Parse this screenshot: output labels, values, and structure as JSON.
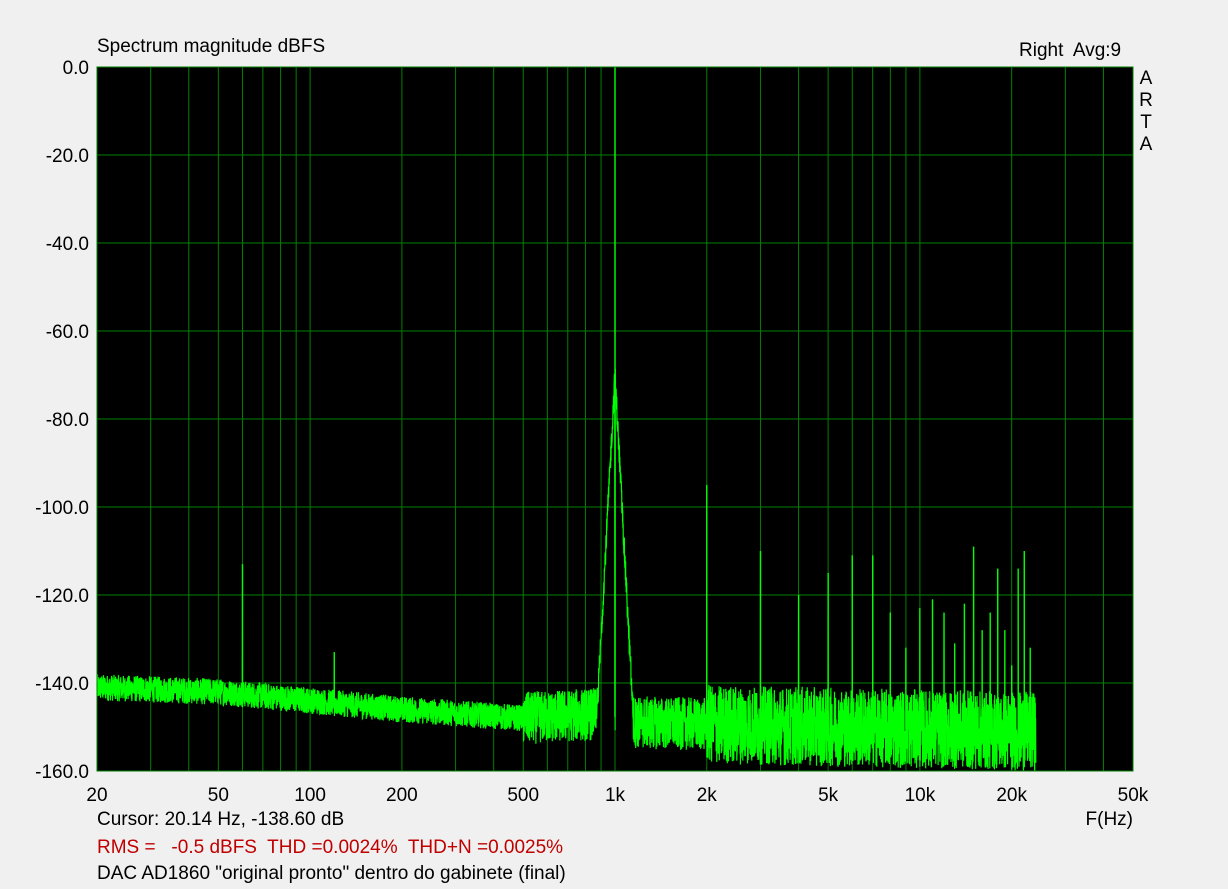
{
  "title": "Spectrum magnitude dBFS",
  "channel_label": "Right  Avg:9",
  "brand_letters": [
    "A",
    "R",
    "T",
    "A"
  ],
  "cursor_text": "Cursor: 20.14 Hz, -138.60 dB",
  "stats_text": "RMS =   -0.5 dBFS  THD =0.0024%  THD+N =0.0025%",
  "caption_text": "DAC AD1860 \"original pronto\" dentro do gabinete (final)",
  "colors": {
    "plot_background": "#000000",
    "grid": "#008000",
    "trace": "#00ff00",
    "stats_text": "#c00000",
    "window_background": "#f0f0f0"
  },
  "chart_data": {
    "type": "line",
    "title": "Spectrum magnitude dBFS",
    "xlabel": "F(Hz)",
    "ylabel": "",
    "x_scale": "log",
    "xlim": [
      20,
      50000
    ],
    "ylim": [
      -160,
      0
    ],
    "grid": true,
    "x_ticks": [
      {
        "value": 20,
        "label": "20"
      },
      {
        "value": 50,
        "label": "50"
      },
      {
        "value": 100,
        "label": "100"
      },
      {
        "value": 200,
        "label": "200"
      },
      {
        "value": 500,
        "label": "500"
      },
      {
        "value": 1000,
        "label": "1k"
      },
      {
        "value": 2000,
        "label": "2k"
      },
      {
        "value": 5000,
        "label": "5k"
      },
      {
        "value": 10000,
        "label": "10k"
      },
      {
        "value": 20000,
        "label": "20k"
      },
      {
        "value": 50000,
        "label": "50k"
      }
    ],
    "y_ticks": [
      {
        "value": 0,
        "label": "0.0"
      },
      {
        "value": -20,
        "label": "-20.0"
      },
      {
        "value": -40,
        "label": "-40.0"
      },
      {
        "value": -60,
        "label": "-60.0"
      },
      {
        "value": -80,
        "label": "-80.0"
      },
      {
        "value": -100,
        "label": "-100.0"
      },
      {
        "value": -120,
        "label": "-120.0"
      },
      {
        "value": -140,
        "label": "-140.0"
      },
      {
        "value": -160,
        "label": "-160.0"
      }
    ],
    "series": [
      {
        "noise_floor": [
          [
            20,
            -141
          ],
          [
            50,
            -142
          ],
          [
            100,
            -144
          ],
          [
            200,
            -146
          ],
          [
            500,
            -148
          ],
          [
            900,
            -147
          ],
          [
            1200,
            -149
          ],
          [
            5000,
            -150
          ],
          [
            24000,
            -151
          ]
        ],
        "peaks": [
          {
            "x": 60,
            "y": -113
          },
          {
            "x": 120,
            "y": -133
          },
          {
            "x": 1000,
            "y": 0
          },
          {
            "x": 2000,
            "y": -95
          },
          {
            "x": 3000,
            "y": -110
          },
          {
            "x": 4000,
            "y": -120
          },
          {
            "x": 5000,
            "y": -115
          },
          {
            "x": 6000,
            "y": -111
          },
          {
            "x": 7000,
            "y": -111
          },
          {
            "x": 8000,
            "y": -124
          },
          {
            "x": 9000,
            "y": -132
          },
          {
            "x": 10000,
            "y": -123
          },
          {
            "x": 11000,
            "y": -121
          },
          {
            "x": 12000,
            "y": -124
          },
          {
            "x": 13000,
            "y": -131
          },
          {
            "x": 14000,
            "y": -122
          },
          {
            "x": 15000,
            "y": -109
          },
          {
            "x": 16000,
            "y": -128
          },
          {
            "x": 17000,
            "y": -124
          },
          {
            "x": 18000,
            "y": -114
          },
          {
            "x": 19000,
            "y": -128
          },
          {
            "x": 20000,
            "y": -136
          },
          {
            "x": 21000,
            "y": -114
          },
          {
            "x": 22000,
            "y": -110
          },
          {
            "x": 23000,
            "y": -132
          }
        ]
      }
    ]
  }
}
